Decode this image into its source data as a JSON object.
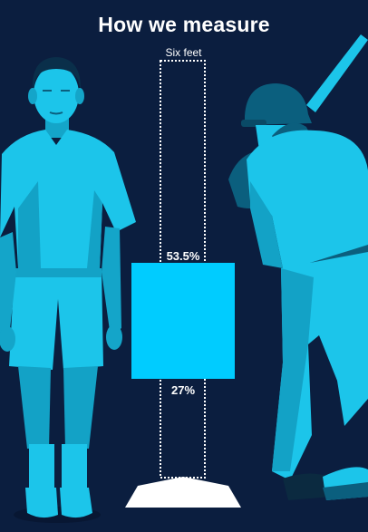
{
  "title": "How we measure",
  "column_label": "Six feet",
  "zone": {
    "top_label": "53.5%",
    "bottom_label": "27%",
    "top_fraction": 0.535,
    "bottom_fraction": 0.27
  },
  "colors": {
    "background": "#0b1e3f",
    "figure_light": "#1cc5ea",
    "figure_mid": "#13a2c6",
    "figure_dark": "#0b5f7e",
    "zone": "#00ccff",
    "plate": "#ffffff"
  },
  "icons": [
    "standing-man-illustration",
    "batter-illustration",
    "home-plate-icon"
  ]
}
